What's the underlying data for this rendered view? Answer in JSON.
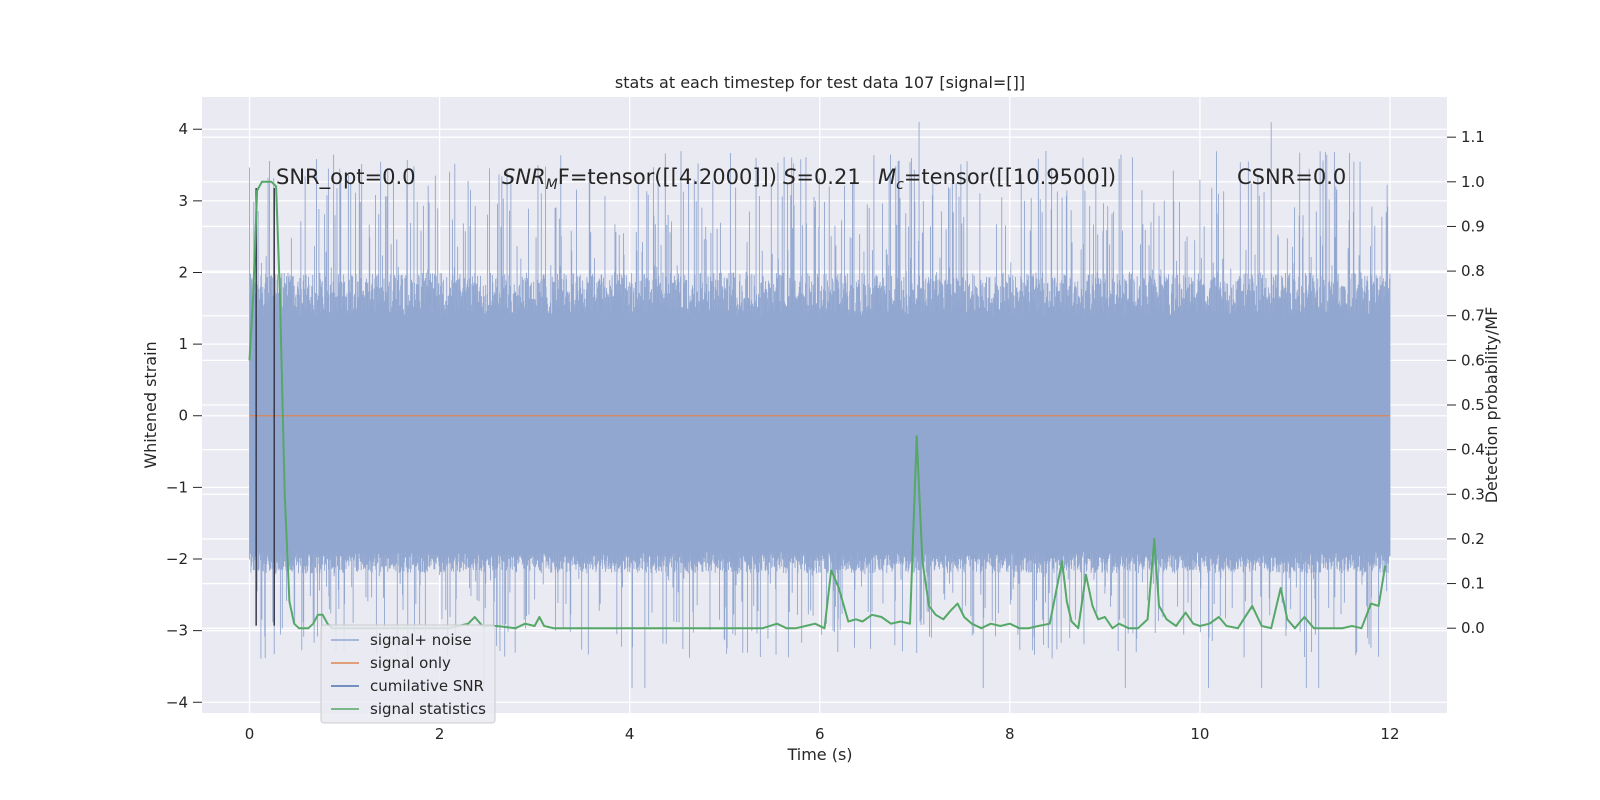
{
  "chart_data": {
    "type": "line",
    "title": "stats at each timestep for test data 107 [signal=[]]",
    "xlabel": "Time (s)",
    "ylabel_left": "Whitened strain",
    "ylabel_right": "Detection probability/MF",
    "xlim": [
      -0.5,
      12.6
    ],
    "ylim_left": [
      -4.15,
      4.45
    ],
    "ylim_right": [
      -0.19,
      1.19
    ],
    "x_ticks": [
      "0",
      "2",
      "4",
      "6",
      "8",
      "10",
      "12"
    ],
    "y_left_ticks": [
      "−4",
      "−3",
      "−2",
      "−1",
      "0",
      "1",
      "2",
      "3",
      "4"
    ],
    "y_right_ticks": [
      "0.0",
      "0.1",
      "0.2",
      "0.3",
      "0.4",
      "0.5",
      "0.6",
      "0.7",
      "0.8",
      "0.9",
      "1.0",
      "1.1"
    ],
    "grid": true,
    "legend_position": "lower-left",
    "annotations": {
      "snr_opt": "SNR_opt=0.0",
      "snr_mf_sym": "SNR",
      "snr_mf_sub": "M",
      "snr_mf_rest": "F=tensor([[4.2000]])",
      "s_sym": "S",
      "s_rest": "=0.21",
      "mc_sym": "M",
      "mc_sub": "c",
      "mc_rest": "=tensor([[10.9500])",
      "csnr": "CSNR=0.0"
    },
    "series": [
      {
        "name": "signal+ noise",
        "color": "#92a7d0",
        "axis": "left",
        "x_range": [
          0,
          12
        ],
        "core_band": [
          -1.9,
          1.4
        ],
        "peak_range": [
          -3.8,
          4.1
        ],
        "description_values": "dense noise"
      },
      {
        "name": "signal only",
        "color": "#dd8452",
        "axis": "left",
        "x": [
          0,
          12
        ],
        "y": [
          0,
          0
        ]
      },
      {
        "name": "cumilative SNR",
        "color": "#4c72b0",
        "axis": "left",
        "vertical_lines_x": [
          0.07,
          0.26
        ],
        "y_span": [
          -2.93,
          3.18
        ]
      },
      {
        "name": "signal statistics",
        "color": "#55a868",
        "axis": "right",
        "x": [
          0,
          0.04,
          0.08,
          0.13,
          0.18,
          0.23,
          0.28,
          0.32,
          0.37,
          0.42,
          0.47,
          0.52,
          0.57,
          0.62,
          0.67,
          0.72,
          0.77,
          0.82,
          0.87,
          0.92,
          0.97,
          1.05,
          1.15,
          1.3,
          1.5,
          1.7,
          1.9,
          2.1,
          2.2,
          2.3,
          2.37,
          2.45,
          2.6,
          2.8,
          2.9,
          3.0,
          3.05,
          3.1,
          3.2,
          3.4,
          3.6,
          3.8,
          4.0,
          4.3,
          4.6,
          5.0,
          5.4,
          5.55,
          5.65,
          5.75,
          5.85,
          5.95,
          6.05,
          6.12,
          6.2,
          6.3,
          6.38,
          6.45,
          6.55,
          6.65,
          6.75,
          6.85,
          6.95,
          7.02,
          7.08,
          7.15,
          7.22,
          7.3,
          7.38,
          7.45,
          7.52,
          7.6,
          7.7,
          7.8,
          7.9,
          8.0,
          8.1,
          8.2,
          8.3,
          8.42,
          8.55,
          8.6,
          8.65,
          8.72,
          8.8,
          8.87,
          8.93,
          9.0,
          9.08,
          9.15,
          9.25,
          9.35,
          9.45,
          9.52,
          9.57,
          9.65,
          9.75,
          9.85,
          9.93,
          10.0,
          10.1,
          10.2,
          10.28,
          10.4,
          10.55,
          10.65,
          10.75,
          10.85,
          10.92,
          11.0,
          11.1,
          11.2,
          11.35,
          11.5,
          11.6,
          11.7,
          11.8,
          11.88,
          11.95
        ],
        "y": [
          0.6,
          0.75,
          0.98,
          1.0,
          1.0,
          1.0,
          0.99,
          0.75,
          0.3,
          0.06,
          0.01,
          0.0,
          0.0,
          0.0,
          0.01,
          0.03,
          0.03,
          0.01,
          0.0,
          0.0,
          0.0,
          0.0,
          0.0,
          0.0,
          0.0,
          0.0,
          0.0,
          0.0,
          0.005,
          0.01,
          0.025,
          0.005,
          0.005,
          0.0,
          0.01,
          0.005,
          0.025,
          0.005,
          0.0,
          0.0,
          0.0,
          0.0,
          0.0,
          0.0,
          0.0,
          0.0,
          0.0,
          0.01,
          0.0,
          0.0,
          0.005,
          0.01,
          0.0,
          0.13,
          0.09,
          0.015,
          0.02,
          0.015,
          0.03,
          0.025,
          0.01,
          0.015,
          0.01,
          0.43,
          0.15,
          0.05,
          0.03,
          0.02,
          0.04,
          0.055,
          0.025,
          0.01,
          0.0,
          0.01,
          0.005,
          0.01,
          0.0,
          0.0,
          0.005,
          0.01,
          0.15,
          0.06,
          0.015,
          0.0,
          0.12,
          0.05,
          0.02,
          0.025,
          0.0,
          0.01,
          0.0,
          0.0,
          0.02,
          0.2,
          0.05,
          0.02,
          0.005,
          0.035,
          0.01,
          0.005,
          0.01,
          0.025,
          0.005,
          0.0,
          0.05,
          0.005,
          0.0,
          0.09,
          0.02,
          0.0,
          0.025,
          0.0,
          0.0,
          0.0,
          0.005,
          0.0,
          0.055,
          0.05,
          0.14
        ]
      }
    ]
  }
}
